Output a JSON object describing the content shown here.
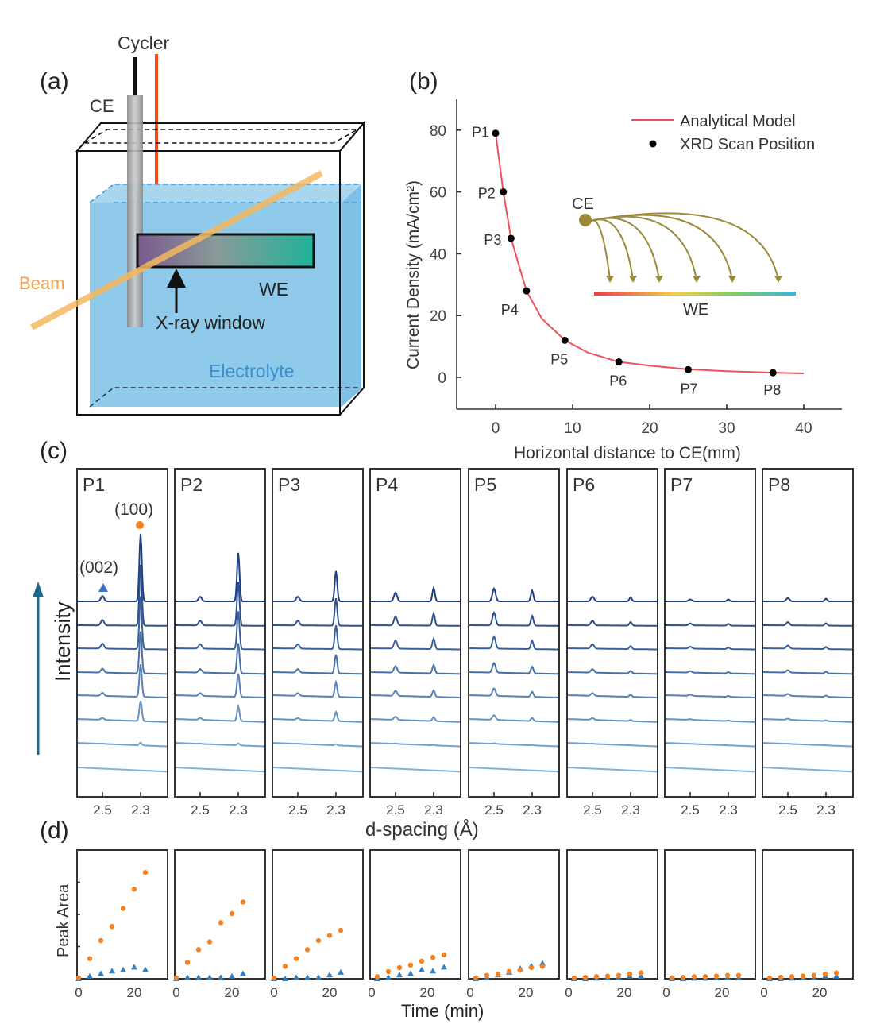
{
  "panel_a": {
    "label": "(a)",
    "cycler": "Cycler",
    "ce": "CE",
    "beam": "Beam",
    "we": "WE",
    "xray_window": "X-ray window",
    "electrolyte": "Electrolyte",
    "colors": {
      "beam": "#f5a04a",
      "electrolyte": "#8fcaea",
      "electrolyte_text": "#3a8fd0",
      "wire": "#f04a1e"
    }
  },
  "panel_c_meta": {
    "label": "(c)",
    "ylabel": "Intensity",
    "xlabel": "d-spacing (Å)",
    "peak_100": "(100)",
    "peak_002": "(002)"
  },
  "panel_d_meta": {
    "label": "(d)",
    "ylabel": "Peak Area",
    "xlabel": "Time (min)"
  },
  "chart_data": [
    {
      "id": "b",
      "label": "(b)",
      "type": "line",
      "xlabel": "Horizontal distance to CE(mm)",
      "ylabel": "Current Density (mA/cm²)",
      "xlim": [
        -5,
        45
      ],
      "ylim": [
        -10,
        90
      ],
      "xticks": [
        "0",
        "10",
        "20",
        "30",
        "40"
      ],
      "yticks": [
        "0",
        "20",
        "40",
        "60",
        "80"
      ],
      "legend_position": "top-right",
      "series": [
        {
          "name": "Analytical Model",
          "kind": "line",
          "color": "#f0505a",
          "x": [
            0,
            1,
            2,
            4,
            6,
            9,
            12,
            16,
            20,
            25,
            30,
            36,
            40
          ],
          "y": [
            79,
            60,
            45,
            28,
            19,
            12,
            8,
            5,
            3.8,
            2.6,
            2.0,
            1.5,
            1.3
          ]
        },
        {
          "name": "XRD Scan Position",
          "kind": "scatter",
          "color": "#000000",
          "x": [
            0,
            1,
            2,
            4,
            9,
            16,
            25,
            36
          ],
          "y": [
            79,
            60,
            45,
            28,
            12,
            5,
            2.5,
            1.5
          ],
          "labels": [
            "P1",
            "P2",
            "P3",
            "P4",
            "P5",
            "P6",
            "P7",
            "P8"
          ]
        }
      ],
      "inset": {
        "ce": "CE",
        "we": "WE"
      }
    },
    {
      "id": "c",
      "type": "line",
      "description_units": "relative intensity (arbitrary)",
      "panels": [
        "P1",
        "P2",
        "P3",
        "P4",
        "P5",
        "P6",
        "P7",
        "P8"
      ],
      "xticks": [
        "2.5",
        "2.3"
      ],
      "traces_per_panel": 8,
      "peak_100_top_trace": [
        1.0,
        0.72,
        0.45,
        0.2,
        0.16,
        0.06,
        0.03,
        0.04
      ],
      "peak_002_top_trace": [
        0.08,
        0.07,
        0.07,
        0.13,
        0.19,
        0.07,
        0.03,
        0.05
      ],
      "trace_growth_factor": [
        1.0,
        0.9,
        0.78,
        0.62,
        0.48,
        0.3,
        0.04,
        0.0
      ],
      "colors": {
        "dark": "#1e3f80",
        "light": "#7fb3dc",
        "marker_100": "#f58220",
        "marker_002": "#3c6fc4"
      }
    },
    {
      "id": "d",
      "type": "scatter",
      "xlim": [
        0,
        30
      ],
      "ylim": [
        0,
        1
      ],
      "xticks": [
        "0",
        "20"
      ],
      "panels": [
        {
          "name": "P1",
          "t": [
            0,
            4,
            8,
            12,
            16,
            20,
            24
          ],
          "area_100": [
            0,
            0.15,
            0.29,
            0.4,
            0.54,
            0.69,
            0.82
          ],
          "area_002": [
            0,
            0.02,
            0.04,
            0.06,
            0.07,
            0.09,
            0.07
          ]
        },
        {
          "name": "P2",
          "t": [
            0,
            4,
            8,
            12,
            16,
            20,
            24
          ],
          "area_100": [
            0,
            0.12,
            0.22,
            0.28,
            0.43,
            0.5,
            0.59
          ],
          "area_002": [
            0,
            0.01,
            0.01,
            0.01,
            0.01,
            0.02,
            0.04
          ]
        },
        {
          "name": "P3",
          "t": [
            0,
            4,
            8,
            12,
            16,
            20,
            24
          ],
          "area_100": [
            0,
            0.09,
            0.15,
            0.22,
            0.29,
            0.33,
            0.37
          ],
          "area_002": [
            0,
            0,
            0.01,
            0.01,
            0.01,
            0.03,
            0.05
          ]
        },
        {
          "name": "P4",
          "t": [
            2,
            6,
            10,
            14,
            18,
            22,
            26
          ],
          "area_100": [
            0.01,
            0.05,
            0.08,
            0.1,
            0.13,
            0.16,
            0.18
          ],
          "area_002": [
            0,
            0.01,
            0.03,
            0.04,
            0.07,
            0.06,
            0.09
          ]
        },
        {
          "name": "P5",
          "t": [
            2,
            6,
            10,
            14,
            18,
            22,
            26
          ],
          "area_100": [
            0,
            0.02,
            0.03,
            0.05,
            0.06,
            0.08,
            0.09
          ],
          "area_002": [
            0,
            0.01,
            0.03,
            0.05,
            0.08,
            0.1,
            0.12
          ]
        },
        {
          "name": "P6",
          "t": [
            2,
            6,
            10,
            14,
            18,
            22,
            26
          ],
          "area_100": [
            0,
            0.005,
            0.01,
            0.015,
            0.02,
            0.03,
            0.04
          ],
          "area_002": [
            0,
            0,
            0.005,
            0.01,
            0.01,
            0.02,
            0.02
          ]
        },
        {
          "name": "P7",
          "t": [
            2,
            6,
            10,
            14,
            18,
            22,
            26
          ],
          "area_100": [
            0,
            0.005,
            0.01,
            0.01,
            0.015,
            0.02,
            0.02
          ],
          "area_002": [
            0,
            0,
            0.005,
            0.005,
            0.01,
            0.01,
            0.01
          ]
        },
        {
          "name": "P8",
          "t": [
            2,
            6,
            10,
            14,
            18,
            22,
            26
          ],
          "area_100": [
            0,
            0.005,
            0.01,
            0.015,
            0.02,
            0.03,
            0.04
          ],
          "area_002": [
            0,
            0,
            0.005,
            0.01,
            0.01,
            0.02,
            0.02
          ]
        }
      ],
      "legend": [
        "(100)",
        "(002)"
      ],
      "colors": {
        "area_100": "#f58220",
        "area_002": "#2f7fc1"
      }
    }
  ]
}
